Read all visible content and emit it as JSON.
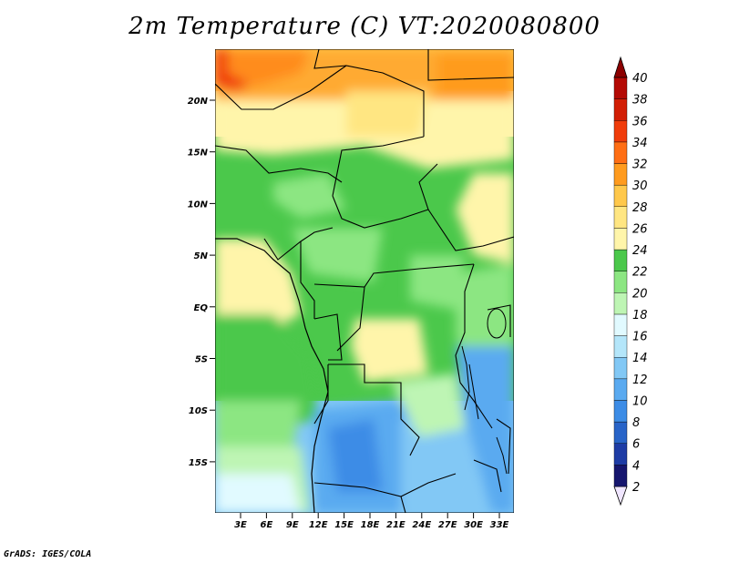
{
  "title": "2m Temperature (C) VT:2020080800",
  "credit": "GrADS: IGES/COLA",
  "map": {
    "lat_ticks": [
      "20N",
      "15N",
      "10N",
      "5N",
      "EQ",
      "5S",
      "10S",
      "15S"
    ],
    "lon_ticks": [
      "3E",
      "6E",
      "9E",
      "12E",
      "15E",
      "18E",
      "21E",
      "24E",
      "27E",
      "30E",
      "33E"
    ]
  },
  "colorbar": {
    "levels": [
      "2",
      "4",
      "6",
      "8",
      "10",
      "12",
      "14",
      "16",
      "18",
      "20",
      "22",
      "24",
      "26",
      "28",
      "30",
      "32",
      "34",
      "36",
      "38",
      "40"
    ],
    "colors": [
      "#f0e6ff",
      "#16166e",
      "#1e3ca5",
      "#2864c8",
      "#3c8ce6",
      "#5aaaf0",
      "#82c8f5",
      "#b4e6fa",
      "#e1faff",
      "#bef5b4",
      "#8ce682",
      "#4bc84b",
      "#fff5aa",
      "#ffe682",
      "#ffc84b",
      "#ff9b1e",
      "#ff6e14",
      "#f03c0a",
      "#d21e05",
      "#b40a05",
      "#8c0000"
    ]
  }
}
